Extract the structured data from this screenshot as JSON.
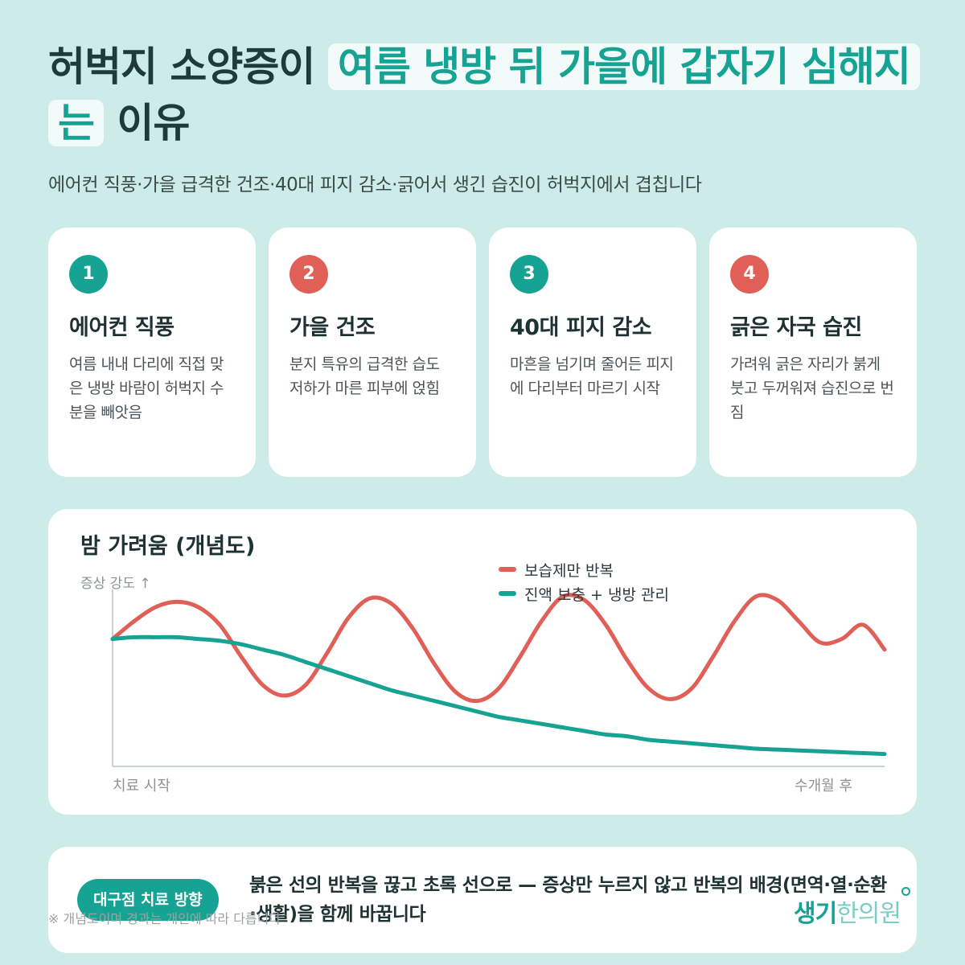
{
  "colors": {
    "teal": "#17a394",
    "coral": "#e06058",
    "background": "#cdebe8"
  },
  "header": {
    "title_part1": "허벅지 소양증이 ",
    "title_highlight": "여름 냉방 뒤 가을에 갑자기 심해지는",
    "title_part2": " 이유",
    "subtitle": "에어컨 직풍·가을 급격한 건조·40대 피지 감소·긁어서 생긴 습진이 허벅지에서 겹칩니다"
  },
  "cards": [
    {
      "num": "1",
      "accent": "teal",
      "title": "에어컨 직풍",
      "desc": "여름 내내 다리에 직접 맞은 냉방 바람이 허벅지 수분을 빼앗음"
    },
    {
      "num": "2",
      "accent": "coral",
      "title": "가을 건조",
      "desc": "분지 특유의 급격한 습도 저하가 마른 피부에 얹힘"
    },
    {
      "num": "3",
      "accent": "teal",
      "title": "40대 피지 감소",
      "desc": "마흔을 넘기며 줄어든 피지에 다리부터 마르기 시작"
    },
    {
      "num": "4",
      "accent": "coral",
      "title": "긁은 자국 습진",
      "desc": "가려워 긁은 자리가 붉게 붓고 두꺼워져 습진으로 번짐"
    }
  ],
  "chart_data": {
    "type": "line",
    "title": "밤 가려움 (개념도)",
    "ylabel": "증상 강도 ↑",
    "x_start_label": "치료 시작",
    "x_end_label": "수개월 후",
    "x": [
      0,
      0.5,
      1,
      1.5,
      2,
      2.5,
      3,
      3.5,
      4,
      4.5,
      5,
      5.5,
      6,
      6.5,
      7,
      7.5,
      8,
      8.5,
      9,
      9.5,
      10,
      10.5,
      11,
      11.5,
      12,
      12.5,
      13,
      13.5,
      14,
      14.5,
      15,
      15.5,
      16,
      16.5,
      17,
      17.5,
      18
    ],
    "ylim": [
      0,
      100
    ],
    "grid": false,
    "legend_position": "top-center",
    "series": [
      {
        "name": "보습제만 반복",
        "color": "#e06058",
        "values": [
          72,
          82,
          90,
          93,
          90,
          80,
          62,
          46,
          40,
          46,
          64,
          84,
          95,
          92,
          78,
          58,
          42,
          37,
          44,
          62,
          82,
          96,
          94,
          80,
          60,
          44,
          38,
          44,
          62,
          82,
          96,
          94,
          82,
          70,
          72,
          80,
          66
        ]
      },
      {
        "name": "진액 보충 + 냉방 관리",
        "color": "#17a394",
        "values": [
          72,
          73,
          73,
          73,
          72,
          71,
          69,
          66,
          63,
          59,
          55,
          51,
          47,
          43,
          40,
          37,
          34,
          31,
          28,
          26,
          24,
          22,
          20,
          18,
          17,
          15,
          14,
          13,
          12,
          11,
          10,
          9.5,
          9,
          8.5,
          8,
          7.5,
          7
        ]
      }
    ]
  },
  "bottom": {
    "badge": "대구점 치료 방향",
    "text": "붉은 선의 반복을 끊고 초록 선으로 — 증상만 누르지 않고 반복의 배경(면역·열·순환·생활)을 함께 바꿉니다",
    "footnote": "※ 개념도이며 경과는 개인에 따라 다릅니다",
    "logo_part1": "생기",
    "logo_part2": "한의원"
  }
}
